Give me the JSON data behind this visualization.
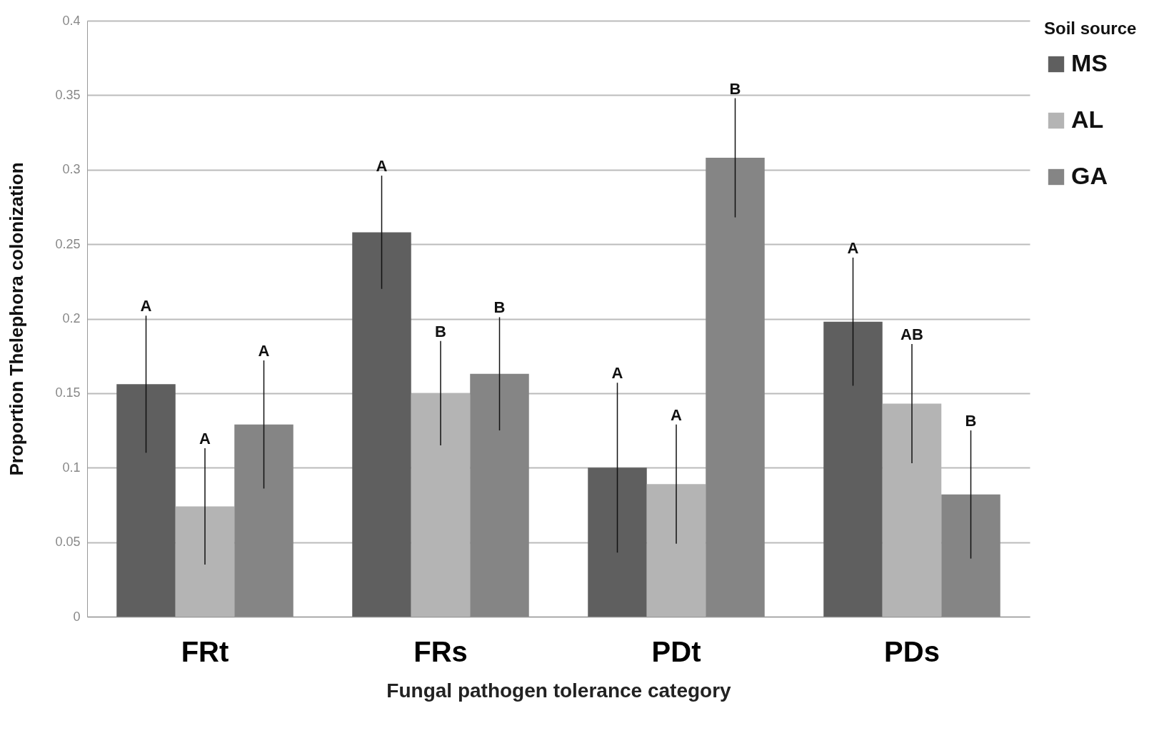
{
  "chart_data": {
    "type": "bar",
    "xlabel": "Fungal pathogen tolerance category",
    "ylabel": "Proportion Thelephora colonization",
    "legend_title": "Soil source",
    "categories": [
      "FRt",
      "FRs",
      "PDt",
      "PDs"
    ],
    "series": [
      {
        "name": "MS",
        "color": "#5f5f5f",
        "values": [
          0.156,
          0.258,
          0.1,
          0.198
        ],
        "errors": [
          0.046,
          0.038,
          0.057,
          0.043
        ]
      },
      {
        "name": "AL",
        "color": "#b4b4b4",
        "values": [
          0.074,
          0.15,
          0.089,
          0.143
        ],
        "errors": [
          0.039,
          0.035,
          0.04,
          0.04
        ]
      },
      {
        "name": "GA",
        "color": "#858585",
        "values": [
          0.129,
          0.163,
          0.308,
          0.082
        ],
        "errors": [
          0.043,
          0.038,
          0.04,
          0.043
        ]
      }
    ],
    "annotations": [
      "A",
      "A",
      "A",
      "A",
      "B",
      "B",
      "A",
      "A",
      "B",
      "A",
      "AB",
      "B"
    ],
    "ylim": [
      0,
      0.4
    ],
    "yticks": [
      0,
      0.05,
      0.1,
      0.15,
      0.2,
      0.25,
      0.3,
      0.35,
      0.4
    ],
    "grid": "y",
    "legend": "right"
  }
}
